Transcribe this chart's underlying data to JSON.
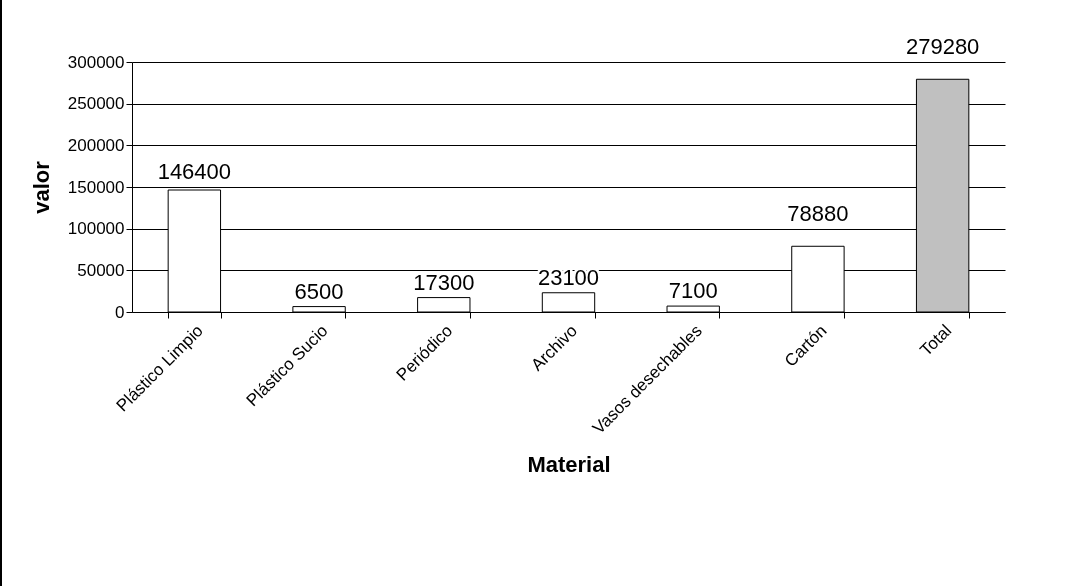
{
  "chart_data": {
    "type": "bar",
    "xlabel": "Material",
    "ylabel": "valor",
    "categories": [
      "Plástico Limpio",
      "Plástico Sucio",
      "Periódico",
      "Archivo",
      "Vasos desechables",
      "Cartón",
      "Total"
    ],
    "values": [
      146400,
      6500,
      17300,
      23100,
      7100,
      78880,
      279280
    ],
    "colors": [
      "#ffffff",
      "#ffffff",
      "#ffffff",
      "#ffffff",
      "#ffffff",
      "#ffffff",
      "#c0c0c0"
    ],
    "ylim": [
      0,
      300000
    ],
    "yticks": [
      0,
      50000,
      100000,
      150000,
      200000,
      250000,
      300000
    ],
    "grid": "y",
    "data_labels": true
  }
}
